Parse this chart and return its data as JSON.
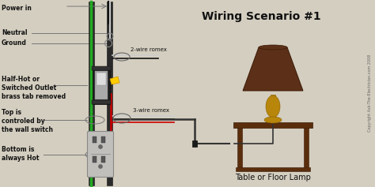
{
  "title": "Wiring Scenario #1",
  "bg_color": "#d4cec0",
  "labels": {
    "power_in": "Power in",
    "neutral": "Neutral",
    "ground": "Ground",
    "half_hot": "Half-Hot or\nSwitched Outlet\nbrass tab removed",
    "top_is": "Top is\ncontroled by\nthe wall switch",
    "bottom_is": "Bottom is\nalways Hot",
    "two_wire": "2-wire romex",
    "three_wire": "3-wire romex",
    "lamp": "Table or Floor Lamp",
    "copyright": "Copyright Ask-The-Electrician.com 2008"
  },
  "colors": {
    "green_wire": "#22aa22",
    "white_wire": "#cccccc",
    "black_wire": "#111111",
    "red_wire": "#cc0000",
    "gray_wire": "#999999",
    "box_dark": "#1a1a1a",
    "box_mid": "#444444",
    "outlet_body": "#aaaaaa",
    "table_brown": "#5a2d0c",
    "lamp_gold": "#b8860b",
    "lamp_shade": "#6b3a2a",
    "text_color": "#111111",
    "label_line": "#777777"
  }
}
